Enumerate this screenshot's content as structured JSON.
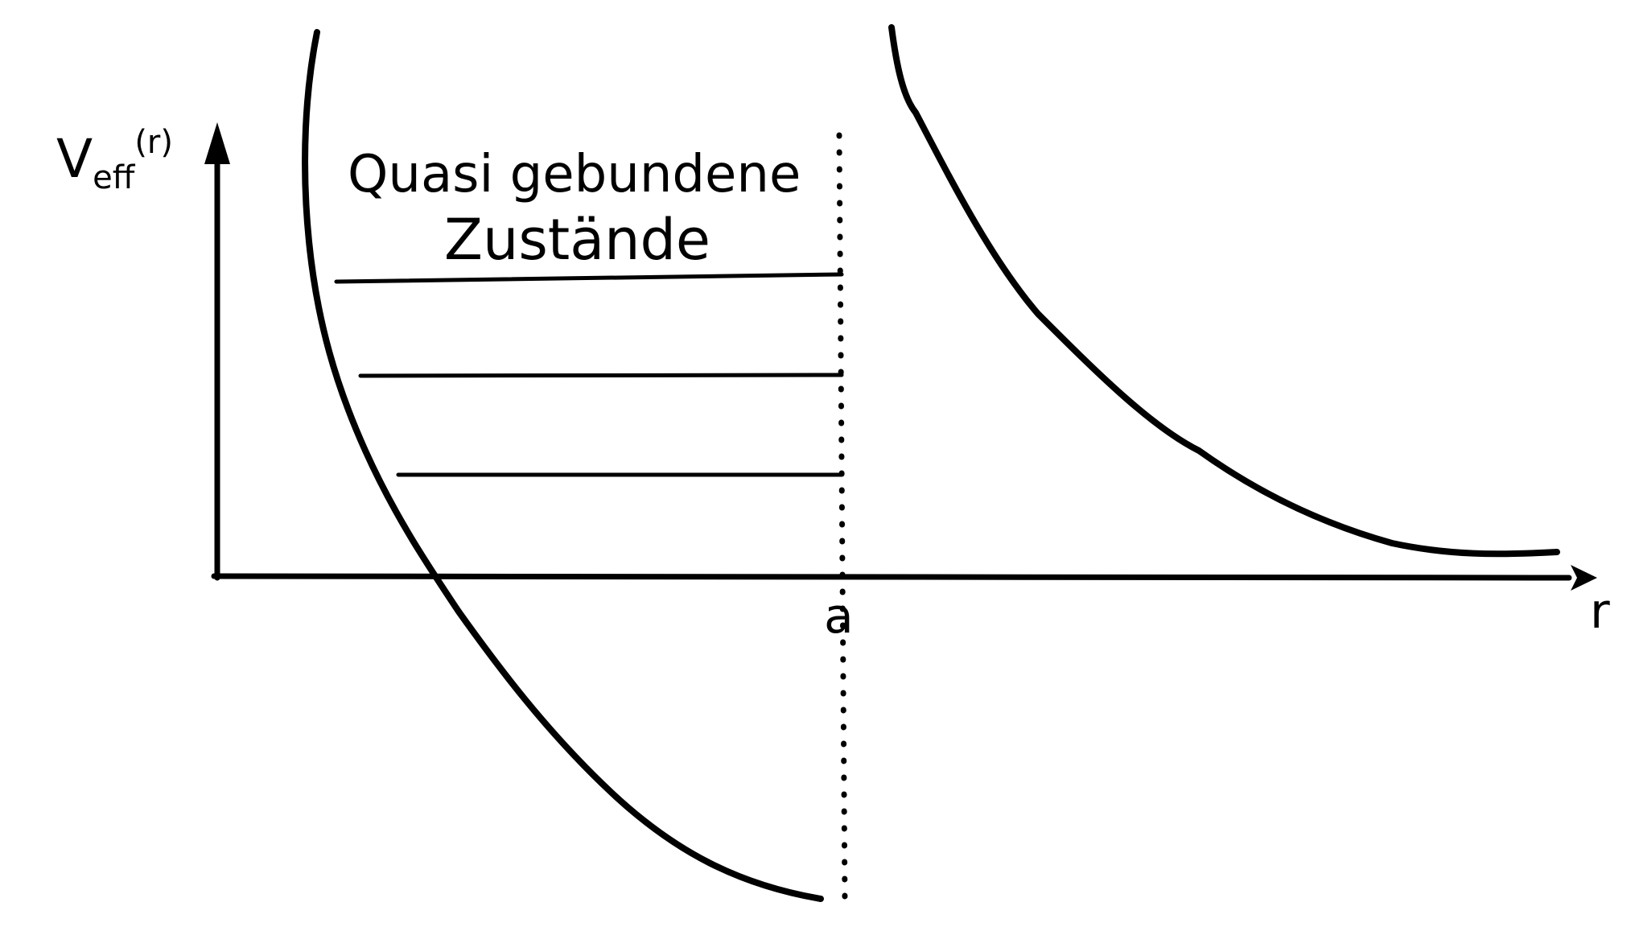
{
  "diagram": {
    "y_axis_label": "V",
    "y_axis_label_sub": "eff",
    "y_axis_label_arg": "(r)",
    "x_axis_label": "r",
    "barrier_marker_label": "a",
    "annotation_line1": "Quasi gebundene",
    "annotation_line2": "Zustände",
    "ink_color": "#000000",
    "background_color": "#ffffff",
    "energy_levels_count": 3
  }
}
